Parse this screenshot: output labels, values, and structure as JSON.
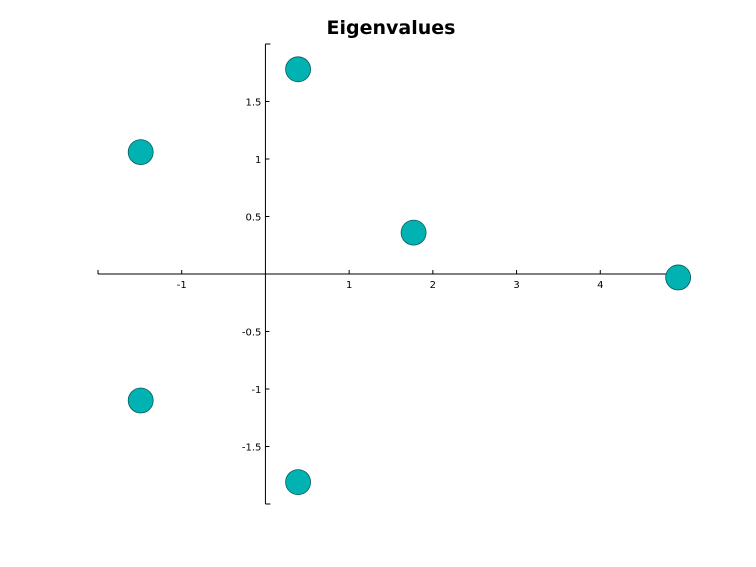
{
  "chart_data": {
    "type": "scatter",
    "title": "Eigenvalues",
    "xlabel": "",
    "ylabel": "",
    "xlim": [
      -2.0,
      5.0
    ],
    "ylim": [
      -2.0,
      2.0
    ],
    "grid": false,
    "axes_through_origin": true,
    "marker_color": "#00b2b2",
    "x_ticks": [
      -1,
      1,
      2,
      3,
      4
    ],
    "x_tick_labels": [
      "-1",
      "1",
      "2",
      "3",
      "4"
    ],
    "y_ticks": [
      1.5,
      1,
      0.5,
      -0.5,
      -1,
      -1.5
    ],
    "y_tick_labels": [
      "1.5",
      "1",
      "0.5",
      "-0.5",
      "-1",
      "-1.5"
    ],
    "points": [
      {
        "x": 0.39,
        "y": 1.78
      },
      {
        "x": -1.49,
        "y": 1.06
      },
      {
        "x": 1.77,
        "y": 0.36
      },
      {
        "x": 4.93,
        "y": -0.03
      },
      {
        "x": -1.49,
        "y": -1.1
      },
      {
        "x": 0.39,
        "y": -1.81
      }
    ]
  }
}
